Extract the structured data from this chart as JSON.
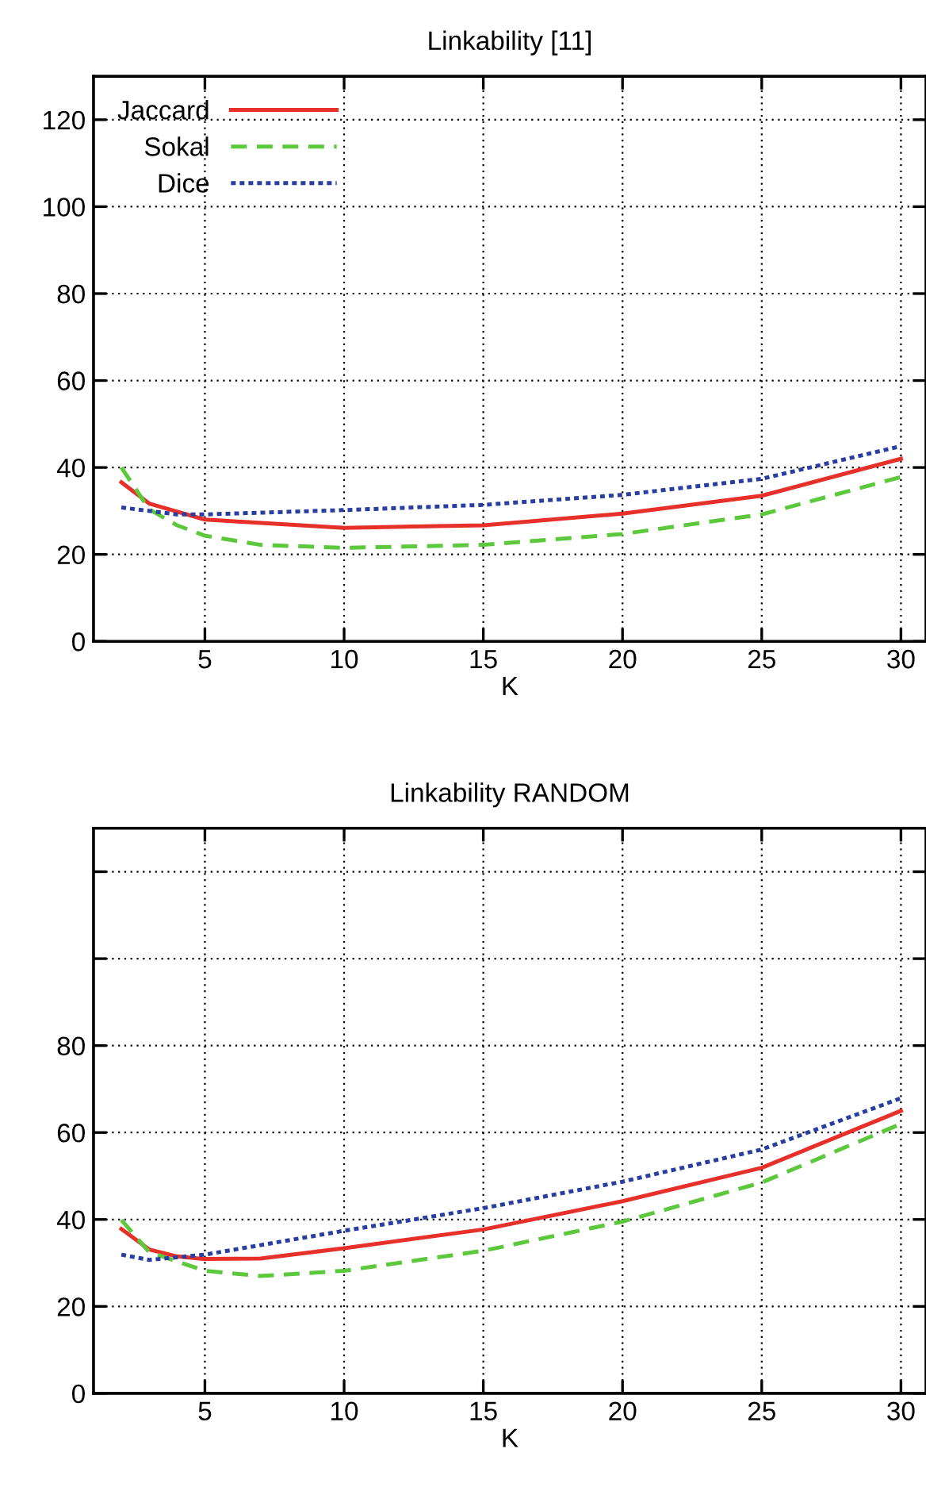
{
  "chart_data": [
    {
      "type": "line",
      "title": "Linkability [11]",
      "xlabel": "K",
      "xlim": [
        1,
        30.9
      ],
      "ylim": [
        0,
        130
      ],
      "xticks": [
        5,
        10,
        15,
        20,
        25,
        30
      ],
      "yticks": [
        0,
        20,
        40,
        60,
        80,
        100,
        120
      ],
      "grid": true,
      "legend": "top left",
      "marker": "none",
      "series": [
        {
          "name": "Jaccard",
          "color": "#e8302a",
          "line_style": "solid",
          "x": [
            2,
            3,
            5,
            10,
            15,
            20,
            25,
            30
          ],
          "values": [
            36.6,
            31.7,
            28,
            26.1,
            26.7,
            29.4,
            33.5,
            42
          ]
        },
        {
          "name": "Sokal",
          "color": "#5cc83c",
          "line_style": "dashed",
          "x": [
            2,
            3,
            4,
            5,
            7,
            10,
            15,
            20,
            25,
            30
          ],
          "values": [
            40,
            30.4,
            26.7,
            24.3,
            22.2,
            21.5,
            22.2,
            24.7,
            29.2,
            37.8
          ]
        },
        {
          "name": "Dice",
          "color": "#2a3ea0",
          "line_style": "dotted",
          "x": [
            2,
            4,
            5,
            10,
            15,
            20,
            25,
            30
          ],
          "values": [
            30.8,
            29.2,
            29.2,
            30.2,
            31.4,
            33.7,
            37.4,
            44.9
          ]
        }
      ]
    },
    {
      "type": "line",
      "title": "Linkability RANDOM",
      "xlabel": "K",
      "xlim": [
        1,
        30.9
      ],
      "ylim": [
        0,
        130
      ],
      "xticks": [
        5,
        10,
        15,
        20,
        25,
        30
      ],
      "yticks": [
        0,
        20,
        40,
        60,
        80,
        {
          "value": 100,
          "label": null
        },
        {
          "value": 120,
          "label": null
        }
      ],
      "grid": true,
      "marker": "none",
      "series": [
        {
          "color": "#e8302a",
          "line_style": "solid",
          "x": [
            2,
            3,
            4,
            5,
            7,
            10,
            15,
            20,
            25,
            30
          ],
          "values": [
            37.8,
            33.1,
            31.5,
            30.9,
            31,
            33.4,
            37.7,
            44.2,
            51.9,
            65
          ]
        },
        {
          "color": "#5cc83c",
          "line_style": "dashed",
          "x": [
            2,
            3,
            5,
            7,
            10,
            15,
            20,
            25,
            30
          ],
          "values": [
            39.9,
            32.5,
            28.2,
            27,
            28.2,
            32.8,
            39.5,
            48.5,
            62
          ]
        },
        {
          "color": "#2a3ea0",
          "line_style": "dotted",
          "x": [
            2,
            3,
            5,
            10,
            15,
            20,
            25,
            30
          ],
          "values": [
            31.9,
            30.7,
            31.9,
            37.4,
            42.6,
            48.7,
            56.1,
            67.9
          ]
        }
      ]
    }
  ]
}
